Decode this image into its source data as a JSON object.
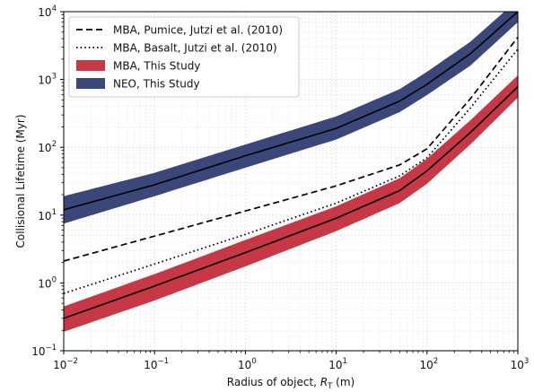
{
  "chart_data": {
    "type": "line",
    "xlabel": "Radius of object, R_T (m)",
    "xlabel_parts": {
      "main": "Radius of object, ",
      "symbol": "R",
      "subscript": "T",
      "unit": " (m)"
    },
    "ylabel": "Collisional Lifetime (Myr)",
    "xscale": "log",
    "yscale": "log",
    "xlim": [
      0.01,
      1000
    ],
    "ylim": [
      0.1,
      10000
    ],
    "x_ticks": [
      {
        "base": "10",
        "exp": "−2"
      },
      {
        "base": "10",
        "exp": "−1"
      },
      {
        "base": "10",
        "exp": "0"
      },
      {
        "base": "10",
        "exp": "1"
      },
      {
        "base": "10",
        "exp": "2"
      },
      {
        "base": "10",
        "exp": "3"
      }
    ],
    "y_ticks": [
      {
        "base": "10",
        "exp": "−1"
      },
      {
        "base": "10",
        "exp": "0"
      },
      {
        "base": "10",
        "exp": "1"
      },
      {
        "base": "10",
        "exp": "2"
      },
      {
        "base": "10",
        "exp": "3"
      },
      {
        "base": "10",
        "exp": "4"
      }
    ],
    "grid": true,
    "legend_position": "top-left",
    "series": [
      {
        "name": "MBA, Pumice, Jutzi et al. (2010)",
        "style": "dashed",
        "color": "#000000",
        "x": [
          0.01,
          0.1,
          1,
          10,
          50,
          100,
          300,
          1000
        ],
        "y": [
          2.1,
          4.9,
          11.5,
          27,
          55,
          95,
          520,
          4200
        ]
      },
      {
        "name": "MBA, Basalt, Jutzi et al. (2010)",
        "style": "dotted",
        "color": "#000000",
        "x": [
          0.01,
          0.1,
          1,
          10,
          50,
          100,
          300,
          1000
        ],
        "y": [
          0.7,
          1.9,
          5.2,
          15,
          38,
          70,
          380,
          2800
        ]
      },
      {
        "name": "MBA, This Study",
        "style": "band",
        "color": "#c73846",
        "x": [
          0.01,
          0.1,
          1,
          10,
          50,
          100,
          300,
          1000
        ],
        "y": [
          0.3,
          0.9,
          2.8,
          9.0,
          23,
          45,
          165,
          780
        ],
        "y_low": [
          0.19,
          0.55,
          1.75,
          5.8,
          15,
          29,
          110,
          540
        ],
        "y_high": [
          0.45,
          1.35,
          4.3,
          13.5,
          35,
          68,
          250,
          1150
        ]
      },
      {
        "name": "NEO, This Study",
        "style": "band",
        "color": "#3a4778",
        "x": [
          0.01,
          0.1,
          1,
          10,
          50,
          100,
          300,
          1000
        ],
        "y": [
          12,
          28,
          75,
          190,
          480,
          850,
          2400,
          10000
        ],
        "y_low": [
          7.5,
          19,
          50,
          130,
          330,
          590,
          1600,
          7000
        ],
        "y_high": [
          19,
          42,
          110,
          285,
          720,
          1300,
          3600,
          15000
        ]
      }
    ]
  }
}
